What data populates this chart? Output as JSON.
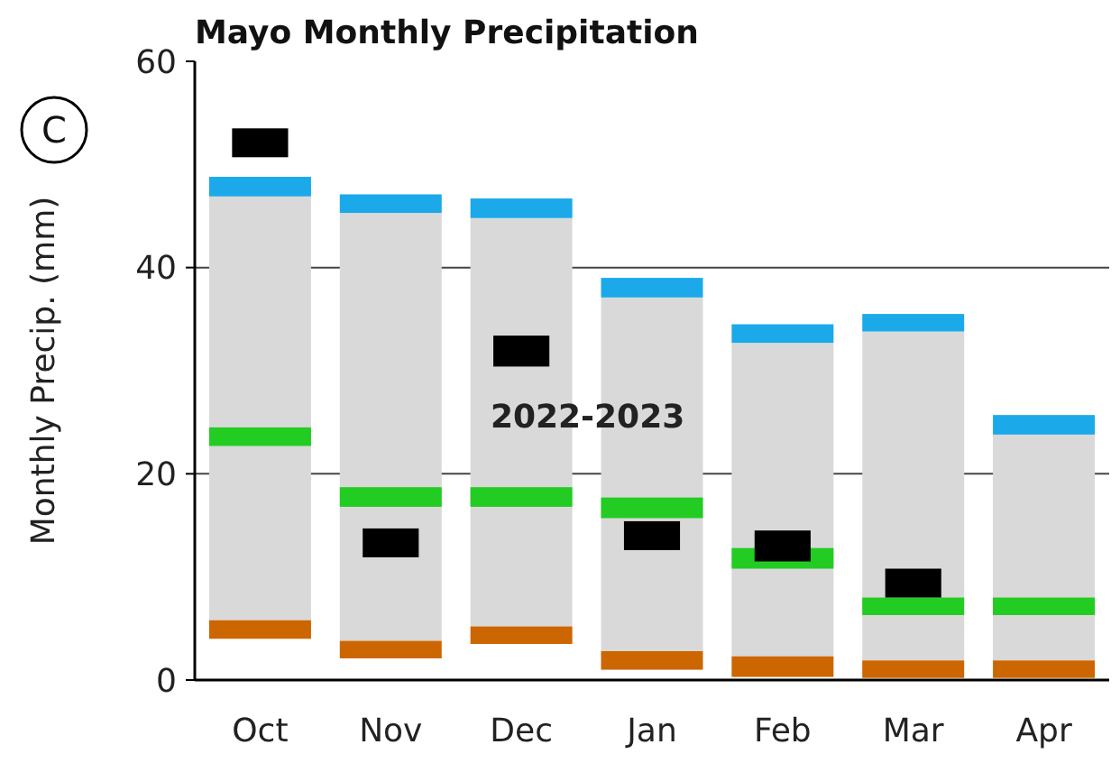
{
  "chart_data": {
    "type": "bar",
    "title": "Mayo Monthly Precipitation",
    "ylabel": "Monthly Precip. (mm)",
    "categories": [
      "Oct",
      "Nov",
      "Dec",
      "Jan",
      "Feb",
      "Mar",
      "Apr"
    ],
    "series": [
      {
        "color": "#d9d9d9",
        "base": [
          5.8,
          3.8,
          5.2,
          2.8,
          2.3,
          1.9,
          1.9
        ],
        "values": [
          41.1,
          41.5,
          39.6,
          34.3,
          30.4,
          31.9,
          21.9
        ]
      },
      {
        "color": "#1ba9ea",
        "base": [
          46.9,
          45.3,
          44.8,
          37.1,
          32.7,
          33.8,
          23.8
        ],
        "values": [
          1.9,
          1.8,
          1.9,
          1.9,
          1.8,
          1.7,
          1.9
        ]
      },
      {
        "color": "#22cc22",
        "base": [
          22.7,
          16.8,
          16.8,
          15.7,
          10.8,
          6.3,
          6.3
        ],
        "values": [
          1.8,
          1.9,
          1.9,
          2.0,
          2.0,
          1.7,
          1.7
        ]
      },
      {
        "color": "#cc6600",
        "base": [
          4.0,
          2.1,
          3.5,
          1.0,
          0.3,
          0.2,
          0.2
        ],
        "values": [
          1.8,
          1.7,
          1.7,
          1.8,
          2.0,
          1.7,
          1.7
        ]
      },
      {
        "name": "2022-2023",
        "color": "#000000",
        "base": [
          50.7,
          11.9,
          30.4,
          12.6,
          11.5,
          8.0,
          null
        ],
        "values": [
          2.8,
          2.8,
          3.0,
          2.8,
          3.0,
          2.8,
          null
        ]
      }
    ],
    "ylim": [
      0,
      60
    ],
    "yticks": [
      0,
      20,
      40,
      60
    ],
    "grid": "y",
    "annotations": [
      "C"
    ]
  }
}
